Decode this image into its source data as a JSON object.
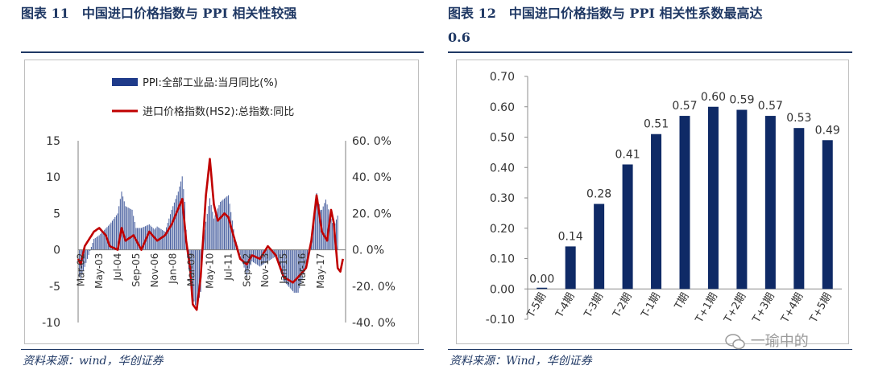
{
  "left": {
    "title": "图表 11　中国进口价格指数与 PPI 相关性较强",
    "source": "资料来源：wind，华创证券",
    "chart_data": {
      "type": "bar+line",
      "legend_placement": "top",
      "series": [
        {
          "name": "PPI:全部工业品:当月同比(%)",
          "type": "bar",
          "axis": "left",
          "color": "#1f3b8a",
          "anchors": [
            [
              "Jan-02",
              -3.5
            ],
            [
              "Mar-02",
              -4.0
            ],
            [
              "Jan-03",
              1.5
            ],
            [
              "May-03",
              2.0
            ],
            [
              "Jan-04",
              3.5
            ],
            [
              "Jul-04",
              5.0
            ],
            [
              "Oct-04",
              8.0
            ],
            [
              "Jan-05",
              6.0
            ],
            [
              "Jun-05",
              5.5
            ],
            [
              "Sep-05",
              3.0
            ],
            [
              "Jan-06",
              3.0
            ],
            [
              "Jul-06",
              3.5
            ],
            [
              "Nov-06",
              2.8
            ],
            [
              "Jan-07",
              3.2
            ],
            [
              "Jul-07",
              2.5
            ],
            [
              "Dec-07",
              5.5
            ],
            [
              "Jan-08",
              6.0
            ],
            [
              "May-08",
              8.0
            ],
            [
              "Aug-08",
              10.1
            ],
            [
              "Oct-08",
              6.6
            ],
            [
              "Dec-08",
              -1.1
            ],
            [
              "Mar-09",
              -6.0
            ],
            [
              "Jul-09",
              -8.2
            ],
            [
              "Oct-09",
              -5.8
            ],
            [
              "Dec-09",
              1.7
            ],
            [
              "May-10",
              7.1
            ],
            [
              "Aug-10",
              4.3
            ],
            [
              "Jan-11",
              6.6
            ],
            [
              "Jul-11",
              7.5
            ],
            [
              "Dec-11",
              1.7
            ],
            [
              "Apr-12",
              -0.7
            ],
            [
              "Sep-12",
              -3.6
            ],
            [
              "Jan-13",
              -1.6
            ],
            [
              "Jul-13",
              -2.3
            ],
            [
              "Jan-14",
              -1.6
            ],
            [
              "Jul-14",
              -0.9
            ],
            [
              "Jan-15",
              -4.3
            ],
            [
              "Sep-15",
              -5.9
            ],
            [
              "Dec-15",
              -5.9
            ],
            [
              "Apr-16",
              -3.4
            ],
            [
              "Aug-16",
              -0.8
            ],
            [
              "Oct-16",
              1.2
            ],
            [
              "Jan-17",
              6.9
            ],
            [
              "Feb-17",
              7.8
            ],
            [
              "May-17",
              5.5
            ],
            [
              "Jun-17",
              5.5
            ],
            [
              "Sep-17",
              6.9
            ],
            [
              "Dec-17",
              4.9
            ],
            [
              "Mar-18",
              3.1
            ],
            [
              "Jun-18",
              4.7
            ]
          ]
        },
        {
          "name": "进口价格指数(HS2):总指数:同比",
          "type": "line",
          "axis": "right",
          "color": "#c00000",
          "anchors": [
            [
              "Jan-02",
              -5
            ],
            [
              "Mar-02",
              -8
            ],
            [
              "Jun-02",
              2
            ],
            [
              "Jan-03",
              10
            ],
            [
              "May-03",
              12
            ],
            [
              "Oct-03",
              8
            ],
            [
              "Jan-04",
              2
            ],
            [
              "Jul-04",
              0
            ],
            [
              "Oct-04",
              12
            ],
            [
              "Jan-05",
              5
            ],
            [
              "Jul-05",
              8
            ],
            [
              "Jan-06",
              0
            ],
            [
              "Jul-06",
              10
            ],
            [
              "Jan-07",
              5
            ],
            [
              "Jul-07",
              8
            ],
            [
              "Dec-07",
              14
            ],
            [
              "Aug-08",
              28
            ],
            [
              "Nov-08",
              5
            ],
            [
              "Feb-09",
              -10
            ],
            [
              "Apr-09",
              -30
            ],
            [
              "Jul-09",
              -33
            ],
            [
              "Oct-09",
              -15
            ],
            [
              "Feb-10",
              30
            ],
            [
              "May-10",
              50
            ],
            [
              "Aug-10",
              25
            ],
            [
              "Nov-10",
              16
            ],
            [
              "Apr-11",
              20
            ],
            [
              "Jul-11",
              18
            ],
            [
              "Dec-11",
              5
            ],
            [
              "Apr-12",
              -5
            ],
            [
              "Sep-12",
              -8
            ],
            [
              "Jan-13",
              -3
            ],
            [
              "Jul-13",
              -5
            ],
            [
              "Jan-14",
              2
            ],
            [
              "Jul-14",
              -3
            ],
            [
              "Jan-15",
              -15
            ],
            [
              "Aug-15",
              -18
            ],
            [
              "Dec-15",
              -15
            ],
            [
              "Jun-16",
              -10
            ],
            [
              "Oct-16",
              5
            ],
            [
              "Feb-17",
              30
            ],
            [
              "Jun-17",
              10
            ],
            [
              "Oct-17",
              5
            ],
            [
              "Jan-18",
              22
            ],
            [
              "Mar-18",
              15
            ],
            [
              "Jun-18",
              -10
            ],
            [
              "Aug-18",
              -12
            ],
            [
              "Oct-18",
              -5
            ]
          ]
        }
      ],
      "x_ticks": [
        "Mar-02",
        "May-03",
        "Jul-04",
        "Sep-05",
        "Nov-06",
        "Jan-08",
        "Mar-09",
        "May-10",
        "Jul-11",
        "Sep-12",
        "Nov-13",
        "Jan-15",
        "Mar-16",
        "May-17"
      ],
      "y_left": {
        "min": -10,
        "max": 15,
        "ticks": [
          "15",
          "10",
          "5",
          "0",
          "-5",
          "-10"
        ]
      },
      "y_right": {
        "min": -40,
        "max": 60,
        "ticks": [
          "60. 0%",
          "40. 0%",
          "20. 0%",
          "0. 0%",
          "-20. 0%",
          "-40. 0%"
        ]
      }
    }
  },
  "right": {
    "title_line1": "图表 12　中国进口价格指数与 PPI 相关性系数最高达",
    "title_line2": "0.6",
    "source": "资料来源：Wind，华创证券",
    "chart_data": {
      "type": "bar",
      "color": "#0f2a66",
      "categories": [
        "T-5期",
        "T-4期",
        "T-3期",
        "T-2期",
        "T-1期",
        "T期",
        "T+1期",
        "T+2期",
        "T+3期",
        "T+4期",
        "T+5期"
      ],
      "values": [
        0.0,
        0.14,
        0.28,
        0.41,
        0.51,
        0.57,
        0.6,
        0.59,
        0.57,
        0.53,
        0.49
      ],
      "labels": [
        "0.00",
        "0.14",
        "0.28",
        "0.41",
        "0.51",
        "0.57",
        "0.60",
        "0.59",
        "0.57",
        "0.53",
        "0.49"
      ],
      "ylim": [
        -0.1,
        0.7
      ],
      "y_ticks": [
        "0.70",
        "0.60",
        "0.50",
        "0.40",
        "0.30",
        "0.20",
        "0.10",
        "0.00",
        "-0.10"
      ],
      "grid": false
    }
  },
  "watermark": {
    "text": "一瑜中的",
    "icon": "wechat-icon"
  }
}
